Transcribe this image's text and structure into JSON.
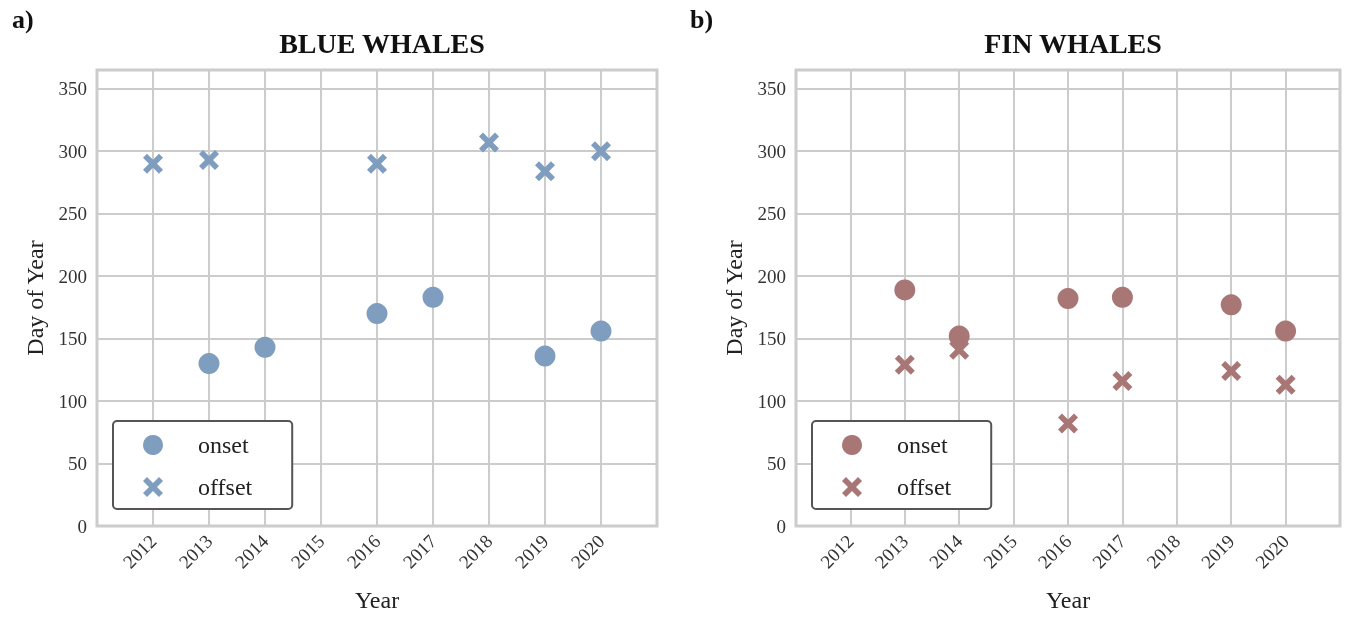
{
  "chart_data": [
    {
      "type": "scatter",
      "title": "BLUE WHALES",
      "xlabel": "Year",
      "ylabel": "Day of Year",
      "annotations": [
        "a)"
      ],
      "xlim": [
        2011,
        2021
      ],
      "xticks": [
        2012,
        2013,
        2014,
        2015,
        2016,
        2017,
        2018,
        2019,
        2020
      ],
      "ylim": [
        0,
        365
      ],
      "yticks": [
        0,
        50,
        100,
        150,
        200,
        250,
        300,
        350
      ],
      "grid": true,
      "legend": "bottom left",
      "series": [
        {
          "name": "onset",
          "color": "#7f9dbf",
          "marker": "circle",
          "x": [
            2013,
            2014,
            2016,
            2017,
            2019,
            2020
          ],
          "values": [
            130,
            143,
            170,
            183,
            136,
            156
          ]
        },
        {
          "name": "offset",
          "color": "#7f9dbf",
          "marker": "cross",
          "x": [
            2012,
            2013,
            2016,
            2018,
            2019,
            2020
          ],
          "values": [
            290,
            293,
            290,
            307,
            284,
            300
          ]
        }
      ]
    },
    {
      "type": "scatter",
      "title": "FIN WHALES",
      "xlabel": "Year",
      "ylabel": "Day of Year",
      "annotations": [
        "b)"
      ],
      "xlim": [
        2011,
        2021
      ],
      "xticks": [
        2012,
        2013,
        2014,
        2015,
        2016,
        2017,
        2018,
        2019,
        2020
      ],
      "ylim": [
        0,
        365
      ],
      "yticks": [
        0,
        50,
        100,
        150,
        200,
        250,
        300,
        350
      ],
      "grid": true,
      "legend": "bottom left",
      "series": [
        {
          "name": "onset",
          "color": "#a87674",
          "marker": "circle",
          "x": [
            2013,
            2014,
            2016,
            2017,
            2019,
            2020
          ],
          "values": [
            189,
            152,
            182,
            183,
            177,
            156
          ]
        },
        {
          "name": "offset",
          "color": "#a87674",
          "marker": "cross",
          "x": [
            2013,
            2014,
            2016,
            2017,
            2019,
            2020
          ],
          "values": [
            129,
            141,
            82,
            116,
            124,
            113
          ]
        }
      ]
    }
  ]
}
